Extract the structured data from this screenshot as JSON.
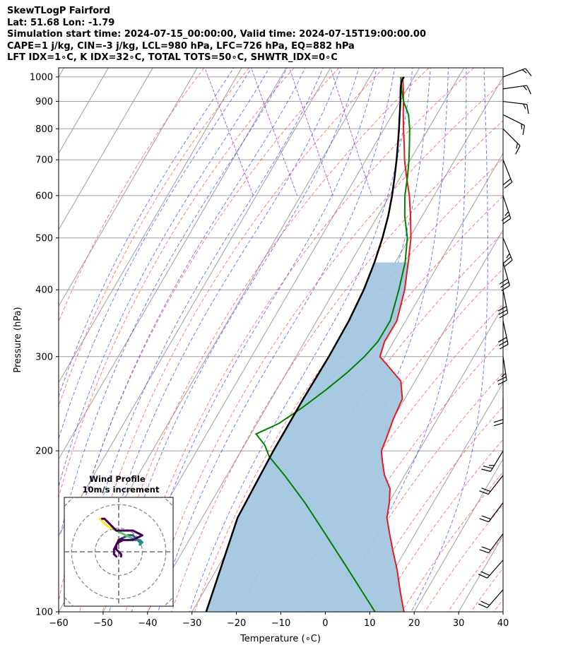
{
  "header": {
    "line1": "SkewTLogP Fairford",
    "line2": "Lat: 51.68   Lon: -1.79",
    "line3": "Simulation start time: 2024-07-15_00:00:00, Valid time: 2024-07-15T19:00:00.00",
    "line4": "CAPE=1 j/kg, CIN=-3 j/kg, LCL=980 hPa, LFC=726 hPa, EQ=882 hPa",
    "line5": "LFT IDX=1∘C, K IDX=32∘C, TOTAL TOTS=50∘C, SHWTR_IDX=0∘C"
  },
  "colors": {
    "temperature": "#e41a1c",
    "dewpoint": "#008000",
    "parcel": "#000000",
    "cape_fill": "#a2c6e0",
    "dry_adiabat": "#ff4444",
    "moist_adiabat": "#3344ff",
    "mixing_ratio": "#9944cc",
    "isotherm": "#a0a0a0"
  },
  "chart_data": {
    "type": "line",
    "subtype": "skew-t log-p",
    "xlabel": "Temperature (∘C)",
    "ylabel": "Pressure (hPa)",
    "xlim": [
      -60,
      40
    ],
    "ylim": [
      1040,
      100
    ],
    "x_ticks": [
      "−60",
      "−50",
      "−40",
      "−30",
      "−20",
      "−10",
      "0",
      "10",
      "20",
      "30",
      "40"
    ],
    "x_tick_values": [
      -60,
      -50,
      -40,
      -30,
      -20,
      -10,
      0,
      10,
      20,
      30,
      40
    ],
    "y_ticks": [
      "100",
      "200",
      "300",
      "400",
      "500",
      "600",
      "700",
      "800",
      "900",
      "1000"
    ],
    "y_tick_values": [
      100,
      200,
      300,
      400,
      500,
      600,
      700,
      800,
      900,
      1000
    ],
    "y_scale": "log",
    "skew_deg_per_decade": 70,
    "grid": true,
    "series": [
      {
        "role": "temperature",
        "points": [
          [
            1000,
            16.2
          ],
          [
            950,
            14.8
          ],
          [
            900,
            13.2
          ],
          [
            850,
            11.4
          ],
          [
            800,
            9.6
          ],
          [
            750,
            7.8
          ],
          [
            700,
            5.8
          ],
          [
            650,
            4.0
          ],
          [
            600,
            2.2
          ],
          [
            550,
            -0.2
          ],
          [
            500,
            -3.0
          ],
          [
            450,
            -6.8
          ],
          [
            400,
            -11.2
          ],
          [
            350,
            -17.0
          ],
          [
            320,
            -22.5
          ],
          [
            300,
            -25.5
          ],
          [
            290,
            -25.0
          ],
          [
            270,
            -24.0
          ],
          [
            250,
            -26.0
          ],
          [
            230,
            -30.5
          ],
          [
            210,
            -35.0
          ],
          [
            200,
            -37.5
          ],
          [
            190,
            -38.8
          ],
          [
            180,
            -40.0
          ],
          [
            170,
            -40.5
          ],
          [
            160,
            -42.5
          ],
          [
            150,
            -45.0
          ],
          [
            140,
            -46.5
          ],
          [
            130,
            -48.0
          ],
          [
            120,
            -49.5
          ],
          [
            110,
            -51.5
          ],
          [
            100,
            -53.5
          ]
        ]
      },
      {
        "role": "dewpoint",
        "points": [
          [
            1000,
            15.8
          ],
          [
            950,
            14.4
          ],
          [
            900,
            13.2
          ],
          [
            850,
            12.6
          ],
          [
            800,
            11.0
          ],
          [
            750,
            9.0
          ],
          [
            700,
            6.8
          ],
          [
            650,
            4.2
          ],
          [
            600,
            1.2
          ],
          [
            550,
            -1.5
          ],
          [
            500,
            -3.8
          ],
          [
            450,
            -7.5
          ],
          [
            400,
            -12.5
          ],
          [
            350,
            -18.5
          ],
          [
            320,
            -24.0
          ],
          [
            300,
            -29.0
          ],
          [
            280,
            -35.0
          ],
          [
            260,
            -42.0
          ],
          [
            240,
            -50.0
          ],
          [
            225,
            -57.0
          ],
          [
            215,
            -63.5
          ],
          [
            205,
            -63.0
          ],
          [
            195,
            -63.5
          ],
          [
            180,
            -62.5
          ],
          [
            160,
            -61.5
          ],
          [
            140,
            -61.0
          ],
          [
            120,
            -60.5
          ],
          [
            100,
            -60.0
          ]
        ]
      },
      {
        "role": "parcel",
        "points": [
          [
            1000,
            16.5
          ],
          [
            980,
            15.3
          ],
          [
            950,
            14.2
          ],
          [
            900,
            12.5
          ],
          [
            850,
            10.6
          ],
          [
            800,
            8.6
          ],
          [
            750,
            6.4
          ],
          [
            700,
            4.0
          ],
          [
            650,
            1.3
          ],
          [
            600,
            -1.7
          ],
          [
            550,
            -5.2
          ],
          [
            500,
            -9.4
          ],
          [
            450,
            -14.4
          ],
          [
            400,
            -20.4
          ],
          [
            350,
            -27.8
          ],
          [
            300,
            -37.0
          ],
          [
            250,
            -48.3
          ],
          [
            200,
            -61.8
          ],
          [
            150,
            -78.6
          ],
          [
            100,
            -98.0
          ]
        ]
      }
    ],
    "wind_barbs": [
      {
        "p": 1000,
        "u": -8,
        "v": -3
      },
      {
        "p": 950,
        "u": -7,
        "v": -1
      },
      {
        "p": 900,
        "u": -8,
        "v": 1
      },
      {
        "p": 850,
        "u": -6,
        "v": 3
      },
      {
        "p": 800,
        "u": -6,
        "v": 6
      },
      {
        "p": 700,
        "u": -4,
        "v": 10
      },
      {
        "p": 600,
        "u": -4,
        "v": 12
      },
      {
        "p": 500,
        "u": -5,
        "v": 12
      },
      {
        "p": 450,
        "u": -4,
        "v": 14
      },
      {
        "p": 400,
        "u": -3,
        "v": 15
      },
      {
        "p": 350,
        "u": -3,
        "v": 14
      },
      {
        "p": 300,
        "u": -2,
        "v": 13
      },
      {
        "p": 250,
        "u": 0,
        "v": 11
      },
      {
        "p": 200,
        "u": 6,
        "v": 10
      },
      {
        "p": 180,
        "u": 7,
        "v": 9
      },
      {
        "p": 160,
        "u": 6,
        "v": 8
      },
      {
        "p": 140,
        "u": 6,
        "v": 8
      },
      {
        "p": 125,
        "u": 7,
        "v": 8
      },
      {
        "p": 110,
        "u": 7,
        "v": 8
      }
    ],
    "hodograph": {
      "title": "Wind Profile",
      "subtitle": "10m/s increment",
      "rings_ms": [
        10,
        20,
        30
      ],
      "range_ms": 30,
      "trace": [
        [
          -1,
          -2
        ],
        [
          -2,
          -1
        ],
        [
          -2,
          1
        ],
        [
          -1,
          3
        ],
        [
          0,
          5
        ],
        [
          2,
          6
        ],
        [
          4,
          7
        ],
        [
          6,
          7
        ],
        [
          7,
          6
        ],
        [
          8,
          5
        ],
        [
          9,
          4
        ],
        [
          9,
          3
        ],
        [
          10,
          4
        ],
        [
          9,
          5
        ],
        [
          7,
          5
        ],
        [
          5,
          6
        ],
        [
          3,
          7
        ],
        [
          1,
          8
        ],
        [
          -1,
          9
        ],
        [
          -3,
          10
        ],
        [
          -5,
          11
        ],
        [
          -6,
          12
        ],
        [
          -7,
          13
        ],
        [
          -8,
          14
        ],
        [
          -7,
          14
        ],
        [
          -6,
          14
        ],
        [
          -5,
          13
        ],
        [
          -4,
          12
        ],
        [
          -3,
          11
        ],
        [
          -2,
          10
        ],
        [
          -1,
          9
        ],
        [
          0,
          9
        ],
        [
          2,
          9
        ],
        [
          4,
          9
        ],
        [
          6,
          9
        ],
        [
          8,
          8
        ],
        [
          10,
          7
        ],
        [
          8,
          6
        ],
        [
          6,
          5
        ],
        [
          4,
          5
        ],
        [
          2,
          5
        ],
        [
          0,
          4
        ],
        [
          -1,
          3
        ],
        [
          -1,
          1
        ],
        [
          0,
          0
        ],
        [
          1,
          -1
        ],
        [
          1,
          -2
        ]
      ]
    }
  }
}
